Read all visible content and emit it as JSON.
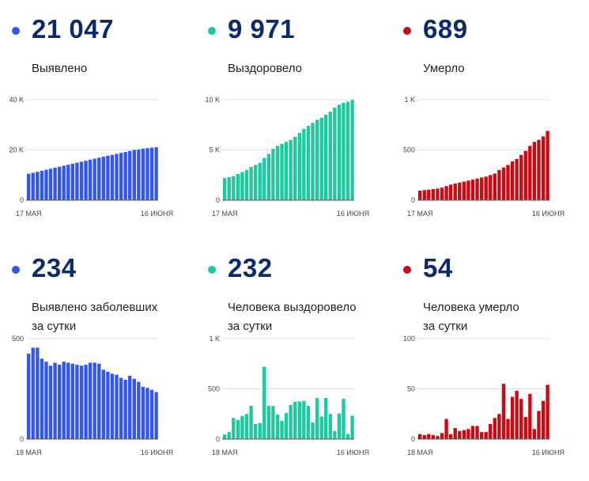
{
  "panels": [
    {
      "value": "21 047",
      "label_lines": [
        "Выявлено"
      ],
      "color": "#3355f0"
    },
    {
      "value": "9 971",
      "label_lines": [
        "Выздоровело"
      ],
      "color": "#1ec8a0"
    },
    {
      "value": "689",
      "label_lines": [
        "Умерло"
      ],
      "color": "#cc0a14"
    },
    {
      "value": "234",
      "label_lines": [
        "Выявлено заболевших",
        "за сутки"
      ],
      "color": "#3355f0"
    },
    {
      "value": "232",
      "label_lines": [
        "Человека выздоровело",
        "за сутки"
      ],
      "color": "#1ec8a0"
    },
    {
      "value": "54",
      "label_lines": [
        "Человека умерло",
        "за сутки"
      ],
      "color": "#cc0a14"
    }
  ],
  "chart_data": [
    {
      "type": "bar",
      "x_start_label": "17 МАЯ",
      "x_end_label": "16 ИЮНЯ",
      "ylim": [
        0,
        40000
      ],
      "ytick_values": [
        0,
        20000,
        40000
      ],
      "ytick_labels": [
        "0",
        "20 K",
        "40 K"
      ],
      "values": [
        10500,
        10900,
        11300,
        11700,
        12100,
        12500,
        12900,
        13300,
        13700,
        14100,
        14500,
        14900,
        15300,
        15700,
        16100,
        16500,
        16900,
        17300,
        17700,
        18000,
        18400,
        18800,
        19200,
        19600,
        20000,
        20200,
        20500,
        20700,
        20900,
        21047
      ]
    },
    {
      "type": "bar",
      "x_start_label": "17 МАЯ",
      "x_end_label": "16 ИЮНЯ",
      "ylim": [
        0,
        10000
      ],
      "ytick_values": [
        0,
        5000,
        10000
      ],
      "ytick_labels": [
        "0",
        "5 K",
        "10 K"
      ],
      "values": [
        2200,
        2300,
        2400,
        2600,
        2800,
        3000,
        3300,
        3500,
        3700,
        4200,
        4600,
        5100,
        5400,
        5600,
        5800,
        6000,
        6300,
        6700,
        7100,
        7400,
        7700,
        8000,
        8200,
        8500,
        8800,
        9200,
        9500,
        9700,
        9800,
        9971
      ]
    },
    {
      "type": "bar",
      "x_start_label": "17 МАЯ",
      "x_end_label": "16 ИЮНЯ",
      "ylim": [
        0,
        1000
      ],
      "ytick_values": [
        0,
        500,
        1000
      ],
      "ytick_labels": [
        "0",
        "500",
        "1 K"
      ],
      "values": [
        95,
        100,
        105,
        110,
        115,
        125,
        140,
        155,
        165,
        175,
        185,
        195,
        205,
        215,
        225,
        235,
        250,
        265,
        300,
        325,
        350,
        385,
        410,
        450,
        490,
        540,
        580,
        600,
        635,
        689
      ]
    },
    {
      "type": "bar",
      "x_start_label": "18 МАЯ",
      "x_end_label": "16 ИЮНЯ",
      "ylim": [
        0,
        500
      ],
      "ytick_values": [
        0,
        500
      ],
      "ytick_labels": [
        "0",
        "500"
      ],
      "values": [
        425,
        455,
        455,
        400,
        385,
        365,
        380,
        370,
        385,
        380,
        375,
        370,
        365,
        370,
        380,
        380,
        375,
        345,
        335,
        325,
        320,
        305,
        295,
        315,
        300,
        285,
        260,
        255,
        245,
        234
      ]
    },
    {
      "type": "bar",
      "x_start_label": "18 МАЯ",
      "x_end_label": "16 ИЮНЯ",
      "ylim": [
        0,
        1000
      ],
      "ytick_values": [
        0,
        500,
        1000
      ],
      "ytick_labels": [
        "0",
        "500",
        "1 K"
      ],
      "values": [
        45,
        70,
        210,
        190,
        230,
        250,
        330,
        150,
        160,
        720,
        330,
        330,
        245,
        180,
        260,
        340,
        370,
        375,
        380,
        330,
        165,
        410,
        225,
        410,
        250,
        80,
        255,
        400,
        50,
        232
      ]
    },
    {
      "type": "bar",
      "x_start_label": "18 МАЯ",
      "x_end_label": "16 ИЮНЯ",
      "ylim": [
        0,
        100
      ],
      "ytick_values": [
        0,
        50,
        100
      ],
      "ytick_labels": [
        "0",
        "50",
        "100"
      ],
      "values": [
        5,
        4,
        5,
        4,
        3,
        6,
        20,
        5,
        11,
        8,
        9,
        10,
        13,
        13,
        7,
        7,
        15,
        21,
        25,
        55,
        20,
        42,
        48,
        40,
        22,
        45,
        10,
        28,
        38,
        54
      ]
    }
  ]
}
